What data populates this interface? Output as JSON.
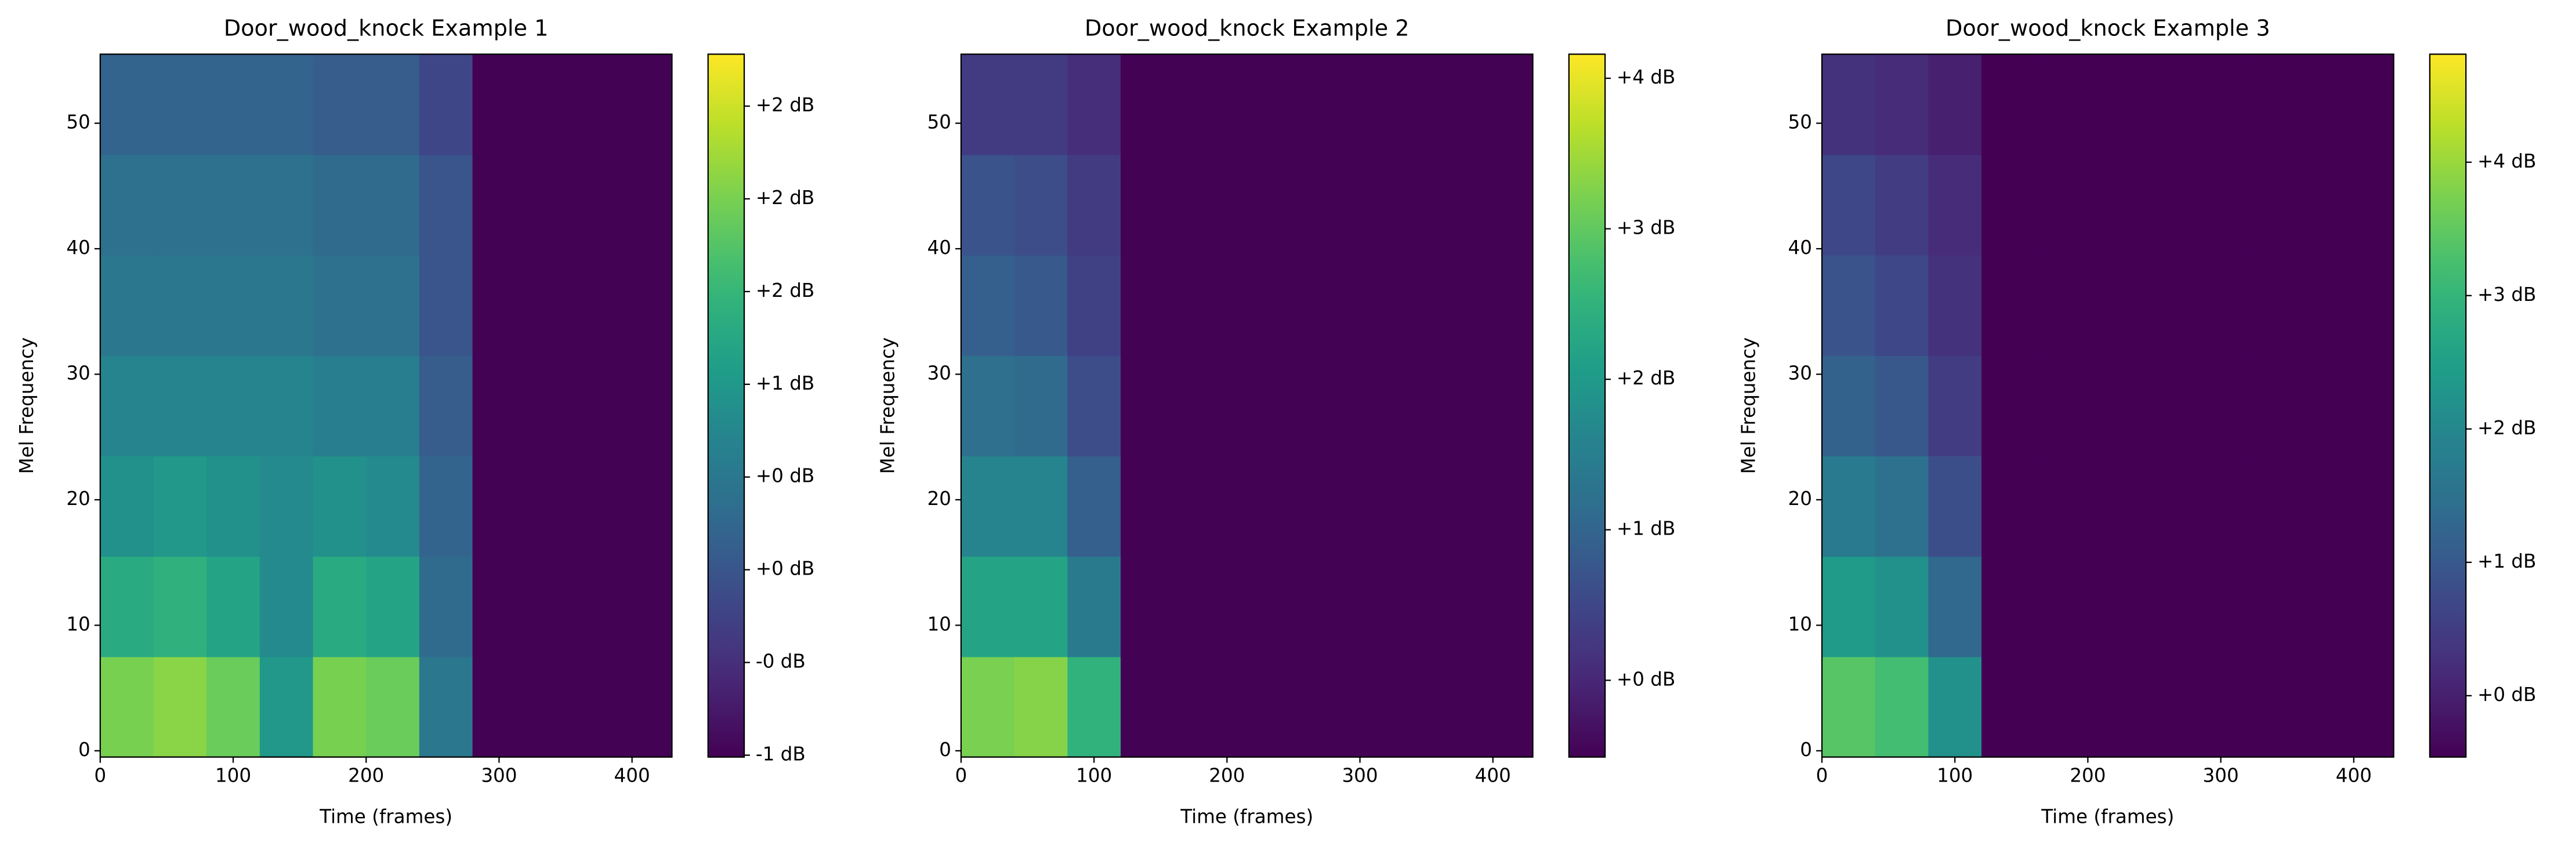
{
  "chart_data": [
    {
      "type": "heatmap",
      "title": "Door_wood_knock Example 1",
      "x_label": "Time (frames)",
      "y_label": "Mel Frequency",
      "colormap": "viridis",
      "xlim": [
        0,
        430
      ],
      "xticks": [
        0,
        100,
        200,
        300,
        400
      ],
      "ylim": [
        -0.5,
        55.5
      ],
      "yticks": [
        0,
        10,
        20,
        30,
        40,
        50
      ],
      "x": [
        20,
        60,
        100,
        140,
        180,
        220,
        260,
        300,
        340,
        380,
        420
      ],
      "y": [
        3.5,
        11.5,
        19.5,
        27.5,
        35.5,
        43.5,
        51.5
      ],
      "z": [
        [
          2.0,
          2.1,
          1.9,
          1.0,
          2.0,
          1.9,
          0.5,
          -1,
          -1,
          -1,
          -1
        ],
        [
          1.3,
          1.4,
          1.2,
          0.8,
          1.3,
          1.2,
          0.3,
          -1,
          -1,
          -1,
          -1
        ],
        [
          0.9,
          1.0,
          0.9,
          0.8,
          0.9,
          0.8,
          0.2,
          -1,
          -1,
          -1,
          -1
        ],
        [
          0.7,
          0.7,
          0.7,
          0.7,
          0.6,
          0.6,
          0.1,
          -1,
          -1,
          -1,
          -1
        ],
        [
          0.5,
          0.5,
          0.5,
          0.5,
          0.4,
          0.4,
          0.0,
          -1,
          -1,
          -1,
          -1
        ],
        [
          0.4,
          0.4,
          0.4,
          0.4,
          0.3,
          0.3,
          0.0,
          -1,
          -1,
          -1,
          -1
        ],
        [
          0.2,
          0.2,
          0.2,
          0.2,
          0.1,
          0.1,
          -0.2,
          -1,
          -1,
          -1,
          -1
        ]
      ],
      "clim": [
        -1.01,
        2.78
      ],
      "cbar_ticks": [
        {
          "value": -1,
          "label": "-1 dB"
        },
        {
          "value": -0.5,
          "label": "-0 dB"
        },
        {
          "value": 0,
          "label": "+0 dB"
        },
        {
          "value": 0.5,
          "label": "+0 dB"
        },
        {
          "value": 1,
          "label": "+1 dB"
        },
        {
          "value": 1.5,
          "label": "+2 dB"
        },
        {
          "value": 2,
          "label": "+2 dB"
        },
        {
          "value": 2.5,
          "label": "+2 dB"
        }
      ]
    },
    {
      "type": "heatmap",
      "title": "Door_wood_knock Example 2",
      "x_label": "Time (frames)",
      "y_label": "Mel Frequency",
      "colormap": "viridis",
      "xlim": [
        0,
        430
      ],
      "xticks": [
        0,
        100,
        200,
        300,
        400
      ],
      "ylim": [
        -0.5,
        55.5
      ],
      "yticks": [
        0,
        10,
        20,
        30,
        40,
        50
      ],
      "x": [
        20,
        60,
        100,
        140,
        180,
        220,
        260,
        300,
        340,
        380,
        420
      ],
      "y": [
        3.5,
        11.5,
        19.5,
        27.5,
        35.5,
        43.5,
        51.5
      ],
      "z": [
        [
          3.2,
          3.3,
          2.5,
          -0.5,
          -0.5,
          -0.5,
          -0.5,
          -0.5,
          -0.5,
          -0.5,
          -0.5
        ],
        [
          2.2,
          2.2,
          1.4,
          -0.5,
          -0.5,
          -0.5,
          -0.5,
          -0.5,
          -0.5,
          -0.5,
          -0.5
        ],
        [
          1.6,
          1.6,
          0.9,
          -0.5,
          -0.5,
          -0.5,
          -0.5,
          -0.5,
          -0.5,
          -0.5,
          -0.5
        ],
        [
          1.2,
          1.1,
          0.6,
          -0.5,
          -0.5,
          -0.5,
          -0.5,
          -0.5,
          -0.5,
          -0.5,
          -0.5
        ],
        [
          0.9,
          0.8,
          0.4,
          -0.5,
          -0.5,
          -0.5,
          -0.5,
          -0.5,
          -0.5,
          -0.5,
          -0.5
        ],
        [
          0.7,
          0.6,
          0.3,
          -0.5,
          -0.5,
          -0.5,
          -0.5,
          -0.5,
          -0.5,
          -0.5,
          -0.5
        ],
        [
          0.3,
          0.3,
          0.1,
          -0.5,
          -0.5,
          -0.5,
          -0.5,
          -0.5,
          -0.5,
          -0.5,
          -0.5
        ]
      ],
      "clim": [
        -0.51,
        4.16
      ],
      "cbar_ticks": [
        {
          "value": 0,
          "label": "+0 dB"
        },
        {
          "value": 1,
          "label": "+1 dB"
        },
        {
          "value": 2,
          "label": "+2 dB"
        },
        {
          "value": 3,
          "label": "+3 dB"
        },
        {
          "value": 4,
          "label": "+4 dB"
        }
      ]
    },
    {
      "type": "heatmap",
      "title": "Door_wood_knock Example 3",
      "x_label": "Time (frames)",
      "y_label": "Mel Frequency",
      "colormap": "viridis",
      "xlim": [
        0,
        430
      ],
      "xticks": [
        0,
        100,
        200,
        300,
        400
      ],
      "ylim": [
        -0.5,
        55.5
      ],
      "yticks": [
        0,
        10,
        20,
        30,
        40,
        50
      ],
      "x": [
        20,
        60,
        100,
        140,
        180,
        220,
        260,
        300,
        340,
        380,
        420
      ],
      "y": [
        3.5,
        11.5,
        19.5,
        27.5,
        35.5,
        43.5,
        51.5
      ],
      "z": [
        [
          3.4,
          3.2,
          2.2,
          -0.46,
          -0.46,
          -0.46,
          -0.46,
          -0.46,
          -0.46,
          -0.46,
          -0.46
        ],
        [
          2.4,
          2.2,
          1.3,
          -0.46,
          -0.46,
          -0.46,
          -0.46,
          -0.46,
          -0.46,
          -0.46,
          -0.46
        ],
        [
          1.7,
          1.5,
          0.8,
          -0.46,
          -0.46,
          -0.46,
          -0.46,
          -0.46,
          -0.46,
          -0.46,
          -0.46
        ],
        [
          1.2,
          1.0,
          0.5,
          -0.46,
          -0.46,
          -0.46,
          -0.46,
          -0.46,
          -0.46,
          -0.46,
          -0.46
        ],
        [
          0.9,
          0.7,
          0.3,
          -0.46,
          -0.46,
          -0.46,
          -0.46,
          -0.46,
          -0.46,
          -0.46,
          -0.46
        ],
        [
          0.7,
          0.5,
          0.2,
          -0.46,
          -0.46,
          -0.46,
          -0.46,
          -0.46,
          -0.46,
          -0.46,
          -0.46
        ],
        [
          0.3,
          0.2,
          0.0,
          -0.46,
          -0.46,
          -0.46,
          -0.46,
          -0.46,
          -0.46,
          -0.46,
          -0.46
        ]
      ],
      "clim": [
        -0.46,
        4.81
      ],
      "cbar_ticks": [
        {
          "value": 0,
          "label": "+0 dB"
        },
        {
          "value": 1,
          "label": "+1 dB"
        },
        {
          "value": 2,
          "label": "+2 dB"
        },
        {
          "value": 3,
          "label": "+3 dB"
        },
        {
          "value": 4,
          "label": "+4 dB"
        }
      ]
    }
  ]
}
